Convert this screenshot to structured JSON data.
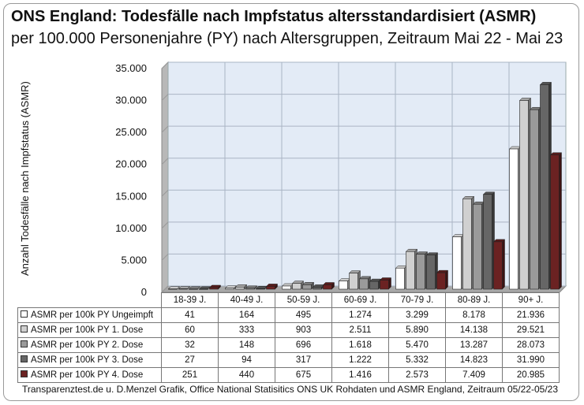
{
  "chart_data": {
    "type": "bar",
    "title": "ONS England: Todesfälle nach Impfstatus altersstandardisiert (ASMR)",
    "subtitle": "per 100.000 Personenjahre (PY) nach Altersgruppen, Zeitraum Mai 22 - Mai 23",
    "ylabel": "Anzahl Todesfälle nach Impfstatus (ASMR)",
    "ylim": [
      0,
      35000
    ],
    "yticks": [
      "0",
      "5.000",
      "10.000",
      "15.000",
      "20.000",
      "25.000",
      "30.000",
      "35.000"
    ],
    "grid": true,
    "categories": [
      "18-39 J.",
      "40-49 J.",
      "50-59 J.",
      "60-69 J.",
      "70-79 J.",
      "80-89 J.",
      "90+ J."
    ],
    "series": [
      {
        "name": "ASMR per 100k PY Ungeimpft",
        "color": "#ffffff",
        "values": [
          41,
          164,
          495,
          1274,
          3299,
          8178,
          21936
        ],
        "labels": [
          "41",
          "164",
          "495",
          "1.274",
          "3.299",
          "8.178",
          "21.936"
        ]
      },
      {
        "name": "ASMR per 100k PY 1. Dose",
        "color": "#d0d0d0",
        "values": [
          60,
          333,
          903,
          2511,
          5890,
          14138,
          29521
        ],
        "labels": [
          "60",
          "333",
          "903",
          "2.511",
          "5.890",
          "14.138",
          "29.521"
        ]
      },
      {
        "name": "ASMR per 100k PY 2. Dose",
        "color": "#9a9a9a",
        "values": [
          32,
          148,
          696,
          1618,
          5470,
          13287,
          28073
        ],
        "labels": [
          "32",
          "148",
          "696",
          "1.618",
          "5.470",
          "13.287",
          "28.073"
        ]
      },
      {
        "name": "ASMR per 100k PY 3. Dose",
        "color": "#666666",
        "values": [
          27,
          94,
          317,
          1222,
          5332,
          14823,
          31990
        ],
        "labels": [
          "27",
          "94",
          "317",
          "1.222",
          "5.332",
          "14.823",
          "31.990"
        ]
      },
      {
        "name": "ASMR per 100k PY 4. Dose",
        "color": "#6b2222",
        "values": [
          251,
          440,
          675,
          1416,
          2573,
          7409,
          20985
        ],
        "labels": [
          "251",
          "440",
          "675",
          "1.416",
          "2.573",
          "7.409",
          "20.985"
        ]
      }
    ],
    "source": "Transparenztest.de u. D.Menzel Grafik, Office National Statisitics ONS UK Rohdaten und ASMR England, Zeitraum 05/22-05/23"
  }
}
